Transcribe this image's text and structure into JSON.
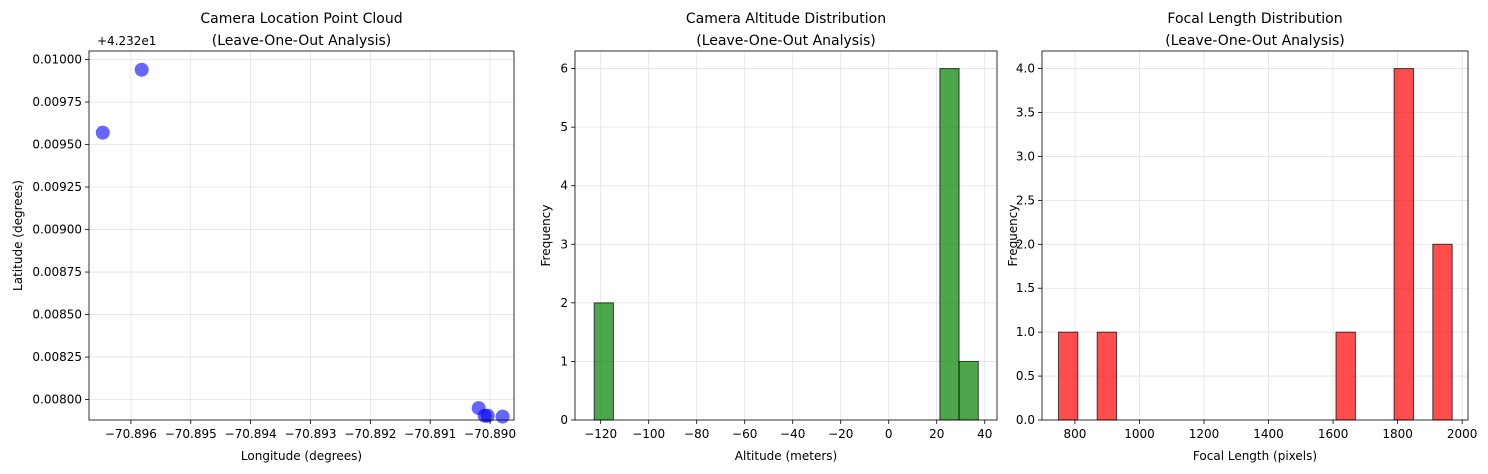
{
  "chart_data": [
    {
      "type": "scatter",
      "title_lines": [
        "Camera Location Point Cloud",
        "(Leave-One-Out Analysis)"
      ],
      "xlabel": "Longitude (degrees)",
      "ylabel": "Latitude (degrees)",
      "offset_text": "+4.232e1",
      "xlim": [
        -70.8967,
        -70.8896
      ],
      "ylim": [
        0.00788,
        0.01005
      ],
      "xticks": [
        -70.896,
        -70.895,
        -70.894,
        -70.893,
        -70.892,
        -70.891,
        -70.89
      ],
      "xtick_labels": [
        "−70.896",
        "−70.895",
        "−70.894",
        "−70.893",
        "−70.892",
        "−70.891",
        "−70.890"
      ],
      "yticks": [
        0.008,
        0.00825,
        0.0085,
        0.00875,
        0.009,
        0.00925,
        0.0095,
        0.00975,
        0.01
      ],
      "ytick_labels": [
        "0.00800",
        "0.00825",
        "0.00850",
        "0.00875",
        "0.00900",
        "0.00925",
        "0.00950",
        "0.00975",
        "0.01000"
      ],
      "points": [
        {
          "x": -70.89647,
          "y": 0.00957
        },
        {
          "x": -70.89582,
          "y": 0.00994
        },
        {
          "x": -70.89019,
          "y": 0.00795
        },
        {
          "x": -70.89009,
          "y": 0.007905
        },
        {
          "x": -70.89004,
          "y": 0.007905
        },
        {
          "x": -70.88979,
          "y": 0.0079
        }
      ],
      "color": "#0000ff",
      "grid": true
    },
    {
      "type": "bar",
      "title_lines": [
        "Camera Altitude Distribution",
        "(Leave-One-Out Analysis)"
      ],
      "xlabel": "Altitude (meters)",
      "ylabel": "Frequency",
      "xlim": [
        -130.7,
        45.1
      ],
      "ylim": [
        0,
        6.3
      ],
      "xticks": [
        -120,
        -100,
        -80,
        -60,
        -40,
        -20,
        0,
        20,
        40
      ],
      "xtick_labels": [
        "−120",
        "−100",
        "−80",
        "−60",
        "−40",
        "−20",
        "0",
        "20",
        "40"
      ],
      "yticks": [
        0,
        1,
        2,
        3,
        4,
        5,
        6
      ],
      "ytick_labels": [
        "0",
        "1",
        "2",
        "3",
        "4",
        "5",
        "6"
      ],
      "bins": [
        {
          "x0": -122.7,
          "x1": -114.7,
          "value": 2
        },
        {
          "x0": 21.3,
          "x1": 29.3,
          "value": 6
        },
        {
          "x0": 29.3,
          "x1": 37.3,
          "value": 1
        }
      ],
      "color": "#008000",
      "grid": true
    },
    {
      "type": "bar",
      "title_lines": [
        "Focal Length Distribution",
        "(Leave-One-Out Analysis)"
      ],
      "xlabel": "Focal Length (pixels)",
      "ylabel": "Frequency",
      "xlim": [
        698,
        2018
      ],
      "ylim": [
        0,
        4.2
      ],
      "xticks": [
        800,
        1000,
        1200,
        1400,
        1600,
        1800,
        2000
      ],
      "xtick_labels": [
        "800",
        "1000",
        "1200",
        "1400",
        "1600",
        "1800",
        "2000"
      ],
      "yticks": [
        0,
        0.5,
        1.0,
        1.5,
        2.0,
        2.5,
        3.0,
        3.5,
        4.0
      ],
      "ytick_labels": [
        "0.0",
        "0.5",
        "1.0",
        "1.5",
        "2.0",
        "2.5",
        "3.0",
        "3.5",
        "4.0"
      ],
      "bins": [
        {
          "x0": 749,
          "x1": 809,
          "value": 1
        },
        {
          "x0": 869,
          "x1": 929,
          "value": 1
        },
        {
          "x0": 1609,
          "x1": 1669,
          "value": 1
        },
        {
          "x0": 1789,
          "x1": 1849,
          "value": 4
        },
        {
          "x0": 1909,
          "x1": 1969,
          "value": 2
        }
      ],
      "color": "#ff0000",
      "grid": true
    }
  ]
}
